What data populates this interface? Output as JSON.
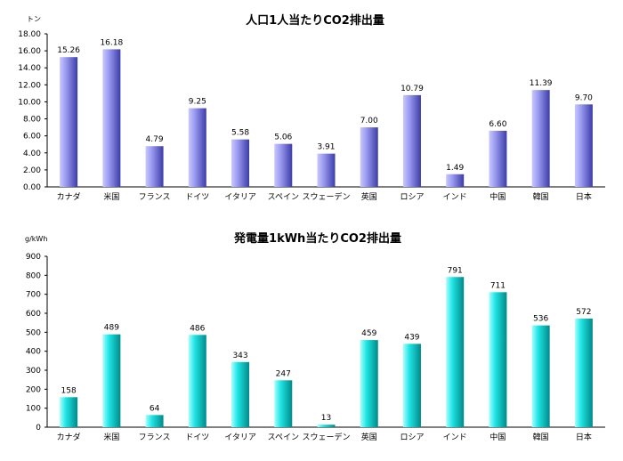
{
  "chart_data": [
    {
      "type": "bar",
      "title": "人口1人当たりCO2排出量",
      "ylabel": "トン",
      "xlabel": "",
      "ylim": [
        0,
        18
      ],
      "yticks": [
        "0.00",
        "2.00",
        "4.00",
        "6.00",
        "8.00",
        "10.00",
        "12.00",
        "14.00",
        "16.00",
        "18.00"
      ],
      "categories": [
        "カナダ",
        "米国",
        "フランス",
        "ドイツ",
        "イタリア",
        "スペイン",
        "スウェーデン",
        "英国",
        "ロシア",
        "インド",
        "中国",
        "韓国",
        "日本"
      ],
      "values": [
        15.26,
        16.18,
        4.79,
        9.25,
        5.58,
        5.06,
        3.91,
        7.0,
        10.79,
        1.49,
        6.6,
        11.39,
        9.7
      ],
      "value_labels": [
        "15.26",
        "16.18",
        "4.79",
        "9.25",
        "5.58",
        "5.06",
        "3.91",
        "7.00",
        "10.79",
        "1.49",
        "6.60",
        "11.39",
        "9.70"
      ],
      "grid": false,
      "bar_color": "#8080e0"
    },
    {
      "type": "bar",
      "title": "発電量1kWh当たりCO2排出量",
      "ylabel": "g/kWh",
      "xlabel": "",
      "ylim": [
        0,
        900
      ],
      "yticks": [
        "0",
        "100",
        "200",
        "300",
        "400",
        "500",
        "600",
        "700",
        "800",
        "900"
      ],
      "categories": [
        "カナダ",
        "米国",
        "フランス",
        "ドイツ",
        "イタリア",
        "スペイン",
        "スウェーデン",
        "英国",
        "ロシア",
        "インド",
        "中国",
        "韓国",
        "日本"
      ],
      "values": [
        158,
        489,
        64,
        486,
        343,
        247,
        13,
        459,
        439,
        791,
        711,
        536,
        572
      ],
      "value_labels": [
        "158",
        "489",
        "64",
        "486",
        "343",
        "247",
        "13",
        "459",
        "439",
        "791",
        "711",
        "536",
        "572"
      ],
      "grid": false,
      "bar_color": "#00c8c8"
    }
  ]
}
